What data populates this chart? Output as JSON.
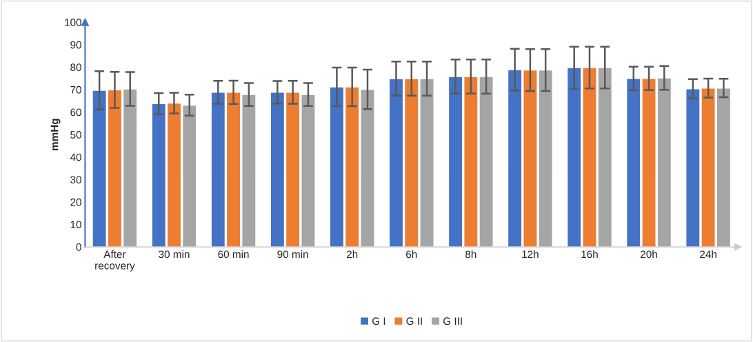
{
  "chart_data": {
    "type": "bar",
    "ylabel": "mmHg",
    "categories": [
      "After\nrecovery",
      "30 min",
      "60 min",
      "90 min",
      "2h",
      "6h",
      "8h",
      "12h",
      "16h",
      "20h",
      "24h"
    ],
    "series": [
      {
        "name": "G I",
        "color": "#4472c4",
        "values": [
          69.7,
          63.8,
          68.8,
          68.8,
          71.2,
          74.9,
          75.8,
          78.9,
          79.8,
          75.0,
          70.4
        ],
        "errors": [
          8.5,
          4.7,
          5.1,
          5.0,
          8.6,
          7.6,
          7.6,
          9.3,
          9.3,
          5.2,
          4.3
        ]
      },
      {
        "name": "G II",
        "color": "#ed7d31",
        "values": [
          69.9,
          64.0,
          68.8,
          68.8,
          71.2,
          74.9,
          75.8,
          78.7,
          79.8,
          75.0,
          70.7
        ],
        "errors": [
          8.0,
          4.6,
          5.2,
          5.1,
          8.6,
          7.6,
          7.6,
          9.3,
          9.3,
          5.2,
          4.2
        ]
      },
      {
        "name": "G III",
        "color": "#a5a5a5",
        "values": [
          70.3,
          63.1,
          67.8,
          67.8,
          70.1,
          74.9,
          75.8,
          78.7,
          79.8,
          75.2,
          70.7
        ],
        "errors": [
          7.5,
          4.7,
          5.1,
          5.1,
          8.8,
          7.6,
          7.6,
          9.3,
          9.3,
          5.3,
          4.1
        ]
      }
    ],
    "ylim": [
      0,
      100
    ],
    "yticks": [
      0,
      10,
      20,
      30,
      40,
      50,
      60,
      70,
      80,
      90,
      100
    ],
    "grid": false,
    "legend": "bottom"
  }
}
